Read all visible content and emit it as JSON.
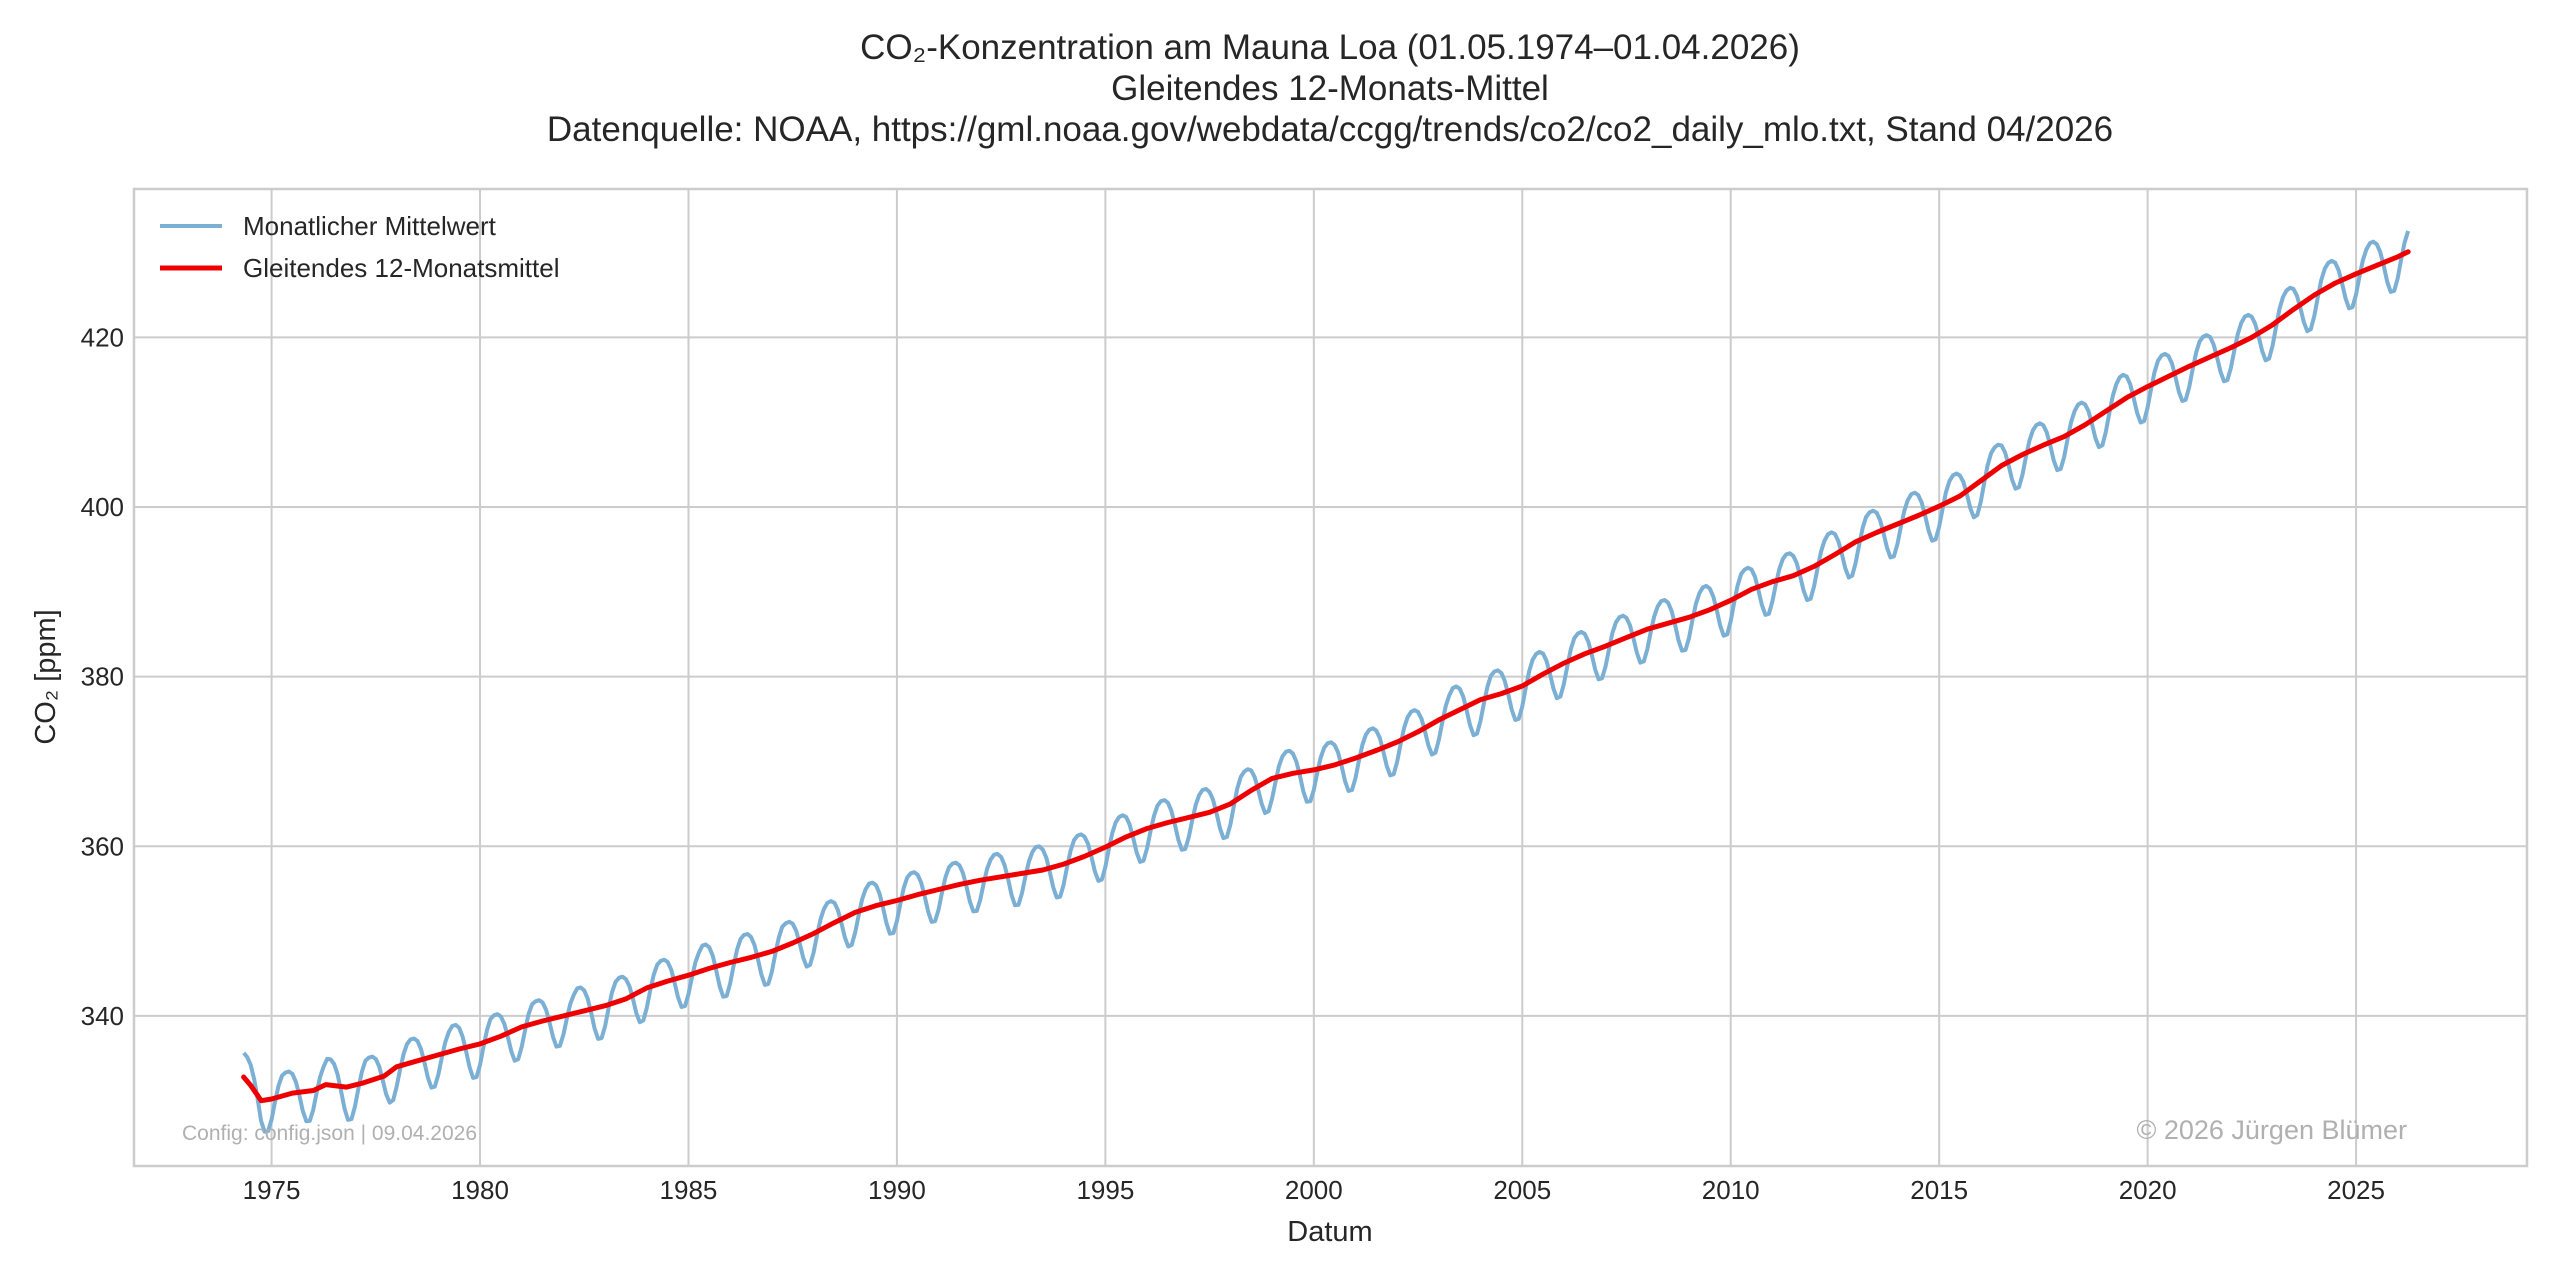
{
  "chart_data": {
    "type": "line",
    "title": "CO₂-Konzentration am Mauna Loa (01.05.1974–01.04.2026)",
    "subtitle": "Gleitendes 12-Monats-Mittel",
    "source": "Datenquelle: NOAA, https://gml.noaa.gov/webdata/ccgg/trends/co2/co2_daily_mlo.txt, Stand 04/2026",
    "xlabel": "Datum",
    "ylabel": "CO₂ [ppm]",
    "xlim": [
      1971.7,
      2029.1
    ],
    "ylim": [
      322.3,
      437.5
    ],
    "x_ticks": [
      1975,
      1980,
      1985,
      1990,
      1995,
      2000,
      2005,
      2010,
      2015,
      2020,
      2025
    ],
    "x_tick_labels": [
      "1975",
      "1980",
      "1985",
      "1990",
      "1995",
      "2000",
      "2005",
      "2010",
      "2015",
      "2020",
      "2025"
    ],
    "y_ticks": [
      340,
      360,
      380,
      400,
      420
    ],
    "y_tick_labels": [
      "340",
      "360",
      "380",
      "400",
      "420"
    ],
    "grid": true,
    "legend_position": "top-left",
    "series": [
      {
        "name": "Monatlicher Mittelwert",
        "color": "#7bafd4",
        "style": "thin",
        "x_start": 1974.333,
        "x_step": 0.08333,
        "description_mode": "monthly_from_trend_plus_seasonal",
        "seasonal_amplitude_ppm": [
          3.4,
          3.2,
          3.6,
          3.3,
          3.3,
          3.5,
          3.3,
          3.1,
          3.4,
          3.3,
          3.2,
          3.5,
          3.4,
          3.2,
          3.3,
          3.4,
          3.3,
          3.2,
          3.3,
          3.4,
          3.3,
          3.3,
          3.3,
          3.4,
          3.3,
          3.3,
          3.3,
          3.3,
          3.3,
          3.5,
          3.4,
          3.4,
          3.3,
          3.3,
          3.4,
          3.5,
          3.3,
          3.3,
          3.4,
          3.3,
          3.4,
          3.4,
          3.3,
          3.3,
          3.4,
          3.5,
          3.4,
          3.3,
          3.4,
          3.4,
          3.4,
          3.5
        ],
        "seasonal_peak_month": 5
      },
      {
        "name": "Gleitendes 12-Monatsmittel",
        "color": "#ee0000",
        "style": "thick",
        "points": [
          [
            1974.33,
            332.8
          ],
          [
            1974.5,
            331.8
          ],
          [
            1974.75,
            330.0
          ],
          [
            1975.0,
            330.2
          ],
          [
            1975.5,
            330.9
          ],
          [
            1976.0,
            331.2
          ],
          [
            1976.3,
            331.9
          ],
          [
            1976.8,
            331.6
          ],
          [
            1977.2,
            332.1
          ],
          [
            1977.7,
            332.9
          ],
          [
            1978.0,
            334.0
          ],
          [
            1978.5,
            334.7
          ],
          [
            1979.0,
            335.4
          ],
          [
            1979.5,
            336.1
          ],
          [
            1980.0,
            336.7
          ],
          [
            1980.5,
            337.6
          ],
          [
            1981.0,
            338.7
          ],
          [
            1981.5,
            339.4
          ],
          [
            1982.0,
            340.0
          ],
          [
            1982.5,
            340.6
          ],
          [
            1983.0,
            341.2
          ],
          [
            1983.5,
            342.0
          ],
          [
            1984.0,
            343.3
          ],
          [
            1984.5,
            344.1
          ],
          [
            1985.0,
            344.8
          ],
          [
            1985.5,
            345.6
          ],
          [
            1986.0,
            346.3
          ],
          [
            1986.5,
            346.9
          ],
          [
            1987.0,
            347.6
          ],
          [
            1987.5,
            348.6
          ],
          [
            1988.0,
            349.7
          ],
          [
            1988.5,
            351.0
          ],
          [
            1989.0,
            352.2
          ],
          [
            1989.5,
            353.0
          ],
          [
            1990.0,
            353.6
          ],
          [
            1990.5,
            354.3
          ],
          [
            1991.0,
            354.9
          ],
          [
            1991.5,
            355.5
          ],
          [
            1992.0,
            356.0
          ],
          [
            1992.5,
            356.4
          ],
          [
            1993.0,
            356.8
          ],
          [
            1993.5,
            357.2
          ],
          [
            1994.0,
            357.9
          ],
          [
            1994.5,
            358.8
          ],
          [
            1995.0,
            359.9
          ],
          [
            1995.5,
            361.1
          ],
          [
            1996.0,
            362.1
          ],
          [
            1996.5,
            362.8
          ],
          [
            1997.0,
            363.4
          ],
          [
            1997.5,
            364.0
          ],
          [
            1998.0,
            365.0
          ],
          [
            1998.5,
            366.6
          ],
          [
            1999.0,
            368.0
          ],
          [
            1999.5,
            368.6
          ],
          [
            2000.0,
            369.0
          ],
          [
            2000.5,
            369.6
          ],
          [
            2001.0,
            370.4
          ],
          [
            2001.5,
            371.3
          ],
          [
            2002.0,
            372.3
          ],
          [
            2002.5,
            373.5
          ],
          [
            2003.0,
            374.9
          ],
          [
            2003.5,
            376.1
          ],
          [
            2004.0,
            377.3
          ],
          [
            2004.5,
            378.0
          ],
          [
            2005.0,
            378.9
          ],
          [
            2005.5,
            380.3
          ],
          [
            2006.0,
            381.6
          ],
          [
            2006.5,
            382.7
          ],
          [
            2007.0,
            383.6
          ],
          [
            2007.5,
            384.6
          ],
          [
            2008.0,
            385.6
          ],
          [
            2008.5,
            386.3
          ],
          [
            2009.0,
            387.0
          ],
          [
            2009.5,
            387.9
          ],
          [
            2010.0,
            389.0
          ],
          [
            2010.5,
            390.3
          ],
          [
            2011.0,
            391.2
          ],
          [
            2011.5,
            391.9
          ],
          [
            2012.0,
            393.0
          ],
          [
            2012.5,
            394.4
          ],
          [
            2013.0,
            395.9
          ],
          [
            2013.5,
            397.0
          ],
          [
            2014.0,
            398.0
          ],
          [
            2014.5,
            399.0
          ],
          [
            2015.0,
            400.1
          ],
          [
            2015.5,
            401.3
          ],
          [
            2016.0,
            403.1
          ],
          [
            2016.5,
            404.9
          ],
          [
            2017.0,
            406.2
          ],
          [
            2017.5,
            407.3
          ],
          [
            2018.0,
            408.3
          ],
          [
            2018.5,
            409.7
          ],
          [
            2019.0,
            411.3
          ],
          [
            2019.5,
            412.9
          ],
          [
            2020.0,
            414.2
          ],
          [
            2020.5,
            415.4
          ],
          [
            2021.0,
            416.6
          ],
          [
            2021.5,
            417.7
          ],
          [
            2022.0,
            418.8
          ],
          [
            2022.5,
            420.0
          ],
          [
            2023.0,
            421.5
          ],
          [
            2023.5,
            423.3
          ],
          [
            2024.0,
            425.0
          ],
          [
            2024.5,
            426.4
          ],
          [
            2025.0,
            427.5
          ],
          [
            2025.5,
            428.5
          ],
          [
            2026.0,
            429.5
          ],
          [
            2026.25,
            430.1
          ]
        ]
      }
    ],
    "annotations": {
      "config_note": "Config: config.json | 09.04.2026",
      "copyright": "© 2026 Jürgen Blümer"
    }
  }
}
